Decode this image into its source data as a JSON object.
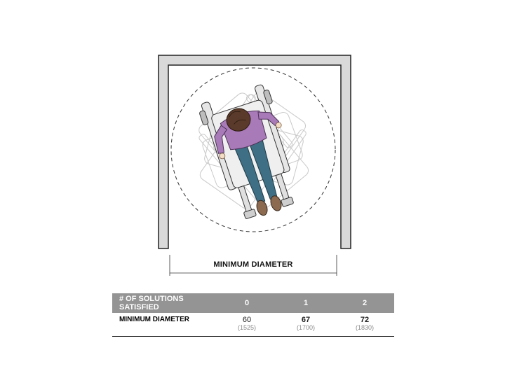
{
  "diagram": {
    "dimension_label": "MINIMUM DIAMETER",
    "colors": {
      "wall_fill": "#d9d9d9",
      "wall_stroke": "#222222",
      "sweater": "#a87ab8",
      "jeans": "#3f6f84",
      "hair": "#5a3a2a",
      "skin": "#f3dcc4",
      "shoes": "#8b6a50",
      "ghost_line": "#c8c8c8"
    }
  },
  "table": {
    "header_label": "# OF SOLUTIONS SATISFIED",
    "columns": [
      "0",
      "1",
      "2"
    ],
    "rows": [
      {
        "label": "MINIMUM DIAMETER",
        "cells": [
          {
            "inches": "60",
            "mm": "(1525)",
            "bold": false
          },
          {
            "inches": "67",
            "mm": "(1700)",
            "bold": true
          },
          {
            "inches": "72",
            "mm": "(1830)",
            "bold": true
          }
        ]
      }
    ]
  }
}
